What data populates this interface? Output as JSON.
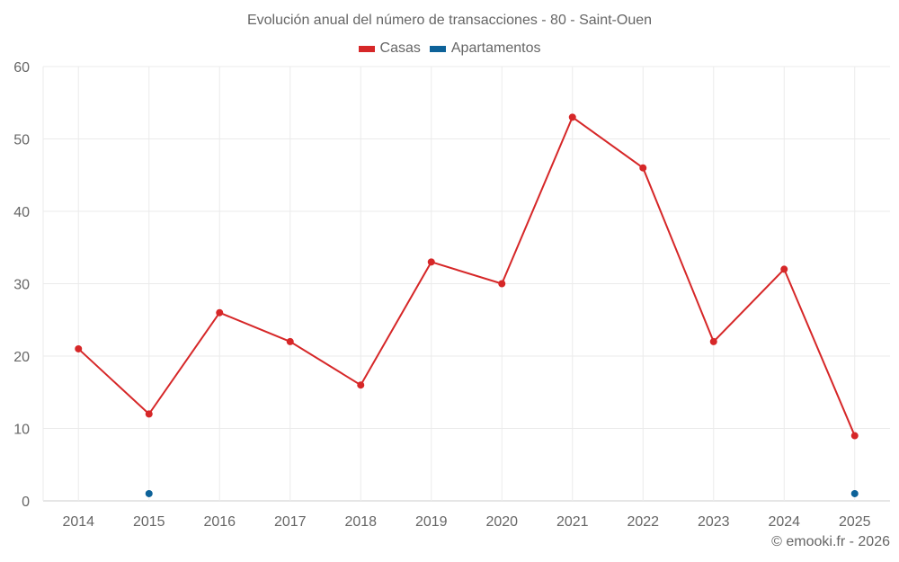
{
  "title": "Evolución anual del número de transacciones - 80 - Saint-Ouen",
  "legend": [
    {
      "label": "Casas",
      "color": "#d62728"
    },
    {
      "label": "Apartamentos",
      "color": "#0d6299"
    }
  ],
  "credit": "© emooki.fr - 2026",
  "chart_data": {
    "type": "line",
    "title": "Evolución anual del número de transacciones - 80 - Saint-Ouen",
    "xlabel": "",
    "ylabel": "",
    "categories": [
      "2014",
      "2015",
      "2016",
      "2017",
      "2018",
      "2019",
      "2020",
      "2021",
      "2022",
      "2023",
      "2024",
      "2025"
    ],
    "series": [
      {
        "name": "Casas",
        "color": "#d62728",
        "values": [
          21,
          12,
          26,
          22,
          16,
          33,
          30,
          53,
          46,
          22,
          32,
          9
        ]
      },
      {
        "name": "Apartamentos",
        "color": "#0d6299",
        "values": [
          null,
          1,
          null,
          null,
          null,
          null,
          null,
          null,
          null,
          null,
          null,
          1
        ]
      }
    ],
    "ylim": [
      0,
      60
    ],
    "yticks": [
      0,
      10,
      20,
      30,
      40,
      50,
      60
    ],
    "grid": true,
    "legend_position": "top"
  }
}
